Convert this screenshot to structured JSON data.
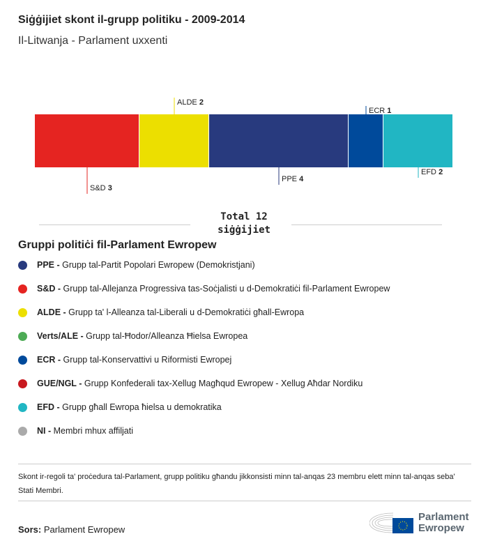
{
  "title": "Siġġijiet skont il-grupp politiku - 2009-2014",
  "subtitle": "Il-Litwanja - Parlament uxxenti",
  "chart_data": {
    "type": "bar",
    "orientation": "stacked-horizontal",
    "categories": [
      "S&D",
      "ALDE",
      "PPE",
      "ECR",
      "EFD"
    ],
    "values": [
      3,
      2,
      4,
      1,
      2
    ],
    "colors": [
      "#e52421",
      "#ecdf00",
      "#283a7e",
      "#004a9b",
      "#21b6c3"
    ],
    "label_positions": [
      "below",
      "above",
      "below",
      "above",
      "below"
    ],
    "total_label": "Total 12 siġġijiet"
  },
  "legend": {
    "title": "Gruppi politiċi fil-Parlament Ewropew",
    "items": [
      {
        "abbr": "PPE -",
        "name": "Grupp tal-Partit Popolari Ewropew (Demokristjani)",
        "color": "#283a7e"
      },
      {
        "abbr": "S&D -",
        "name": "Grupp tal-Allejanza Progressiva tas-Soċjalisti u d-Demokratiċi fil-Parlament Ewropew",
        "color": "#e52421"
      },
      {
        "abbr": "ALDE -",
        "name": "Grupp ta' l-Alleanza tal-Liberali u d-Demokratiċi għall-Ewropa",
        "color": "#ecdf00"
      },
      {
        "abbr": "Verts/ALE -",
        "name": "Grupp tal-Ħodor/Alleanza Ħielsa Ewropea",
        "color": "#4dab55"
      },
      {
        "abbr": "ECR -",
        "name": "Grupp tal-Konservattivi u Riformisti Ewropej",
        "color": "#004a9b"
      },
      {
        "abbr": "GUE/NGL -",
        "name": "Grupp Konfederali tax-Xellug Magħqud Ewropew - Xellug Aħdar Nordiku",
        "color": "#c8191f"
      },
      {
        "abbr": "EFD -",
        "name": "Grupp għall Ewropa ħielsa u demokratika",
        "color": "#21b6c3"
      },
      {
        "abbr": "NI -",
        "name": "Membri mhux affiljati",
        "color": "#aaaaaa"
      }
    ]
  },
  "note": "Skont ir-regoli ta' proċedura tal-Parlament, grupp politiku għandu jikkonsisti minn tal-anqas 23 membru elett minn tal-anqas seba' Stati Membri.",
  "source": {
    "label": "Sors:",
    "value": "Parlament Ewropew"
  },
  "logo": {
    "line1": "Parlament",
    "line2": "Ewropew"
  }
}
